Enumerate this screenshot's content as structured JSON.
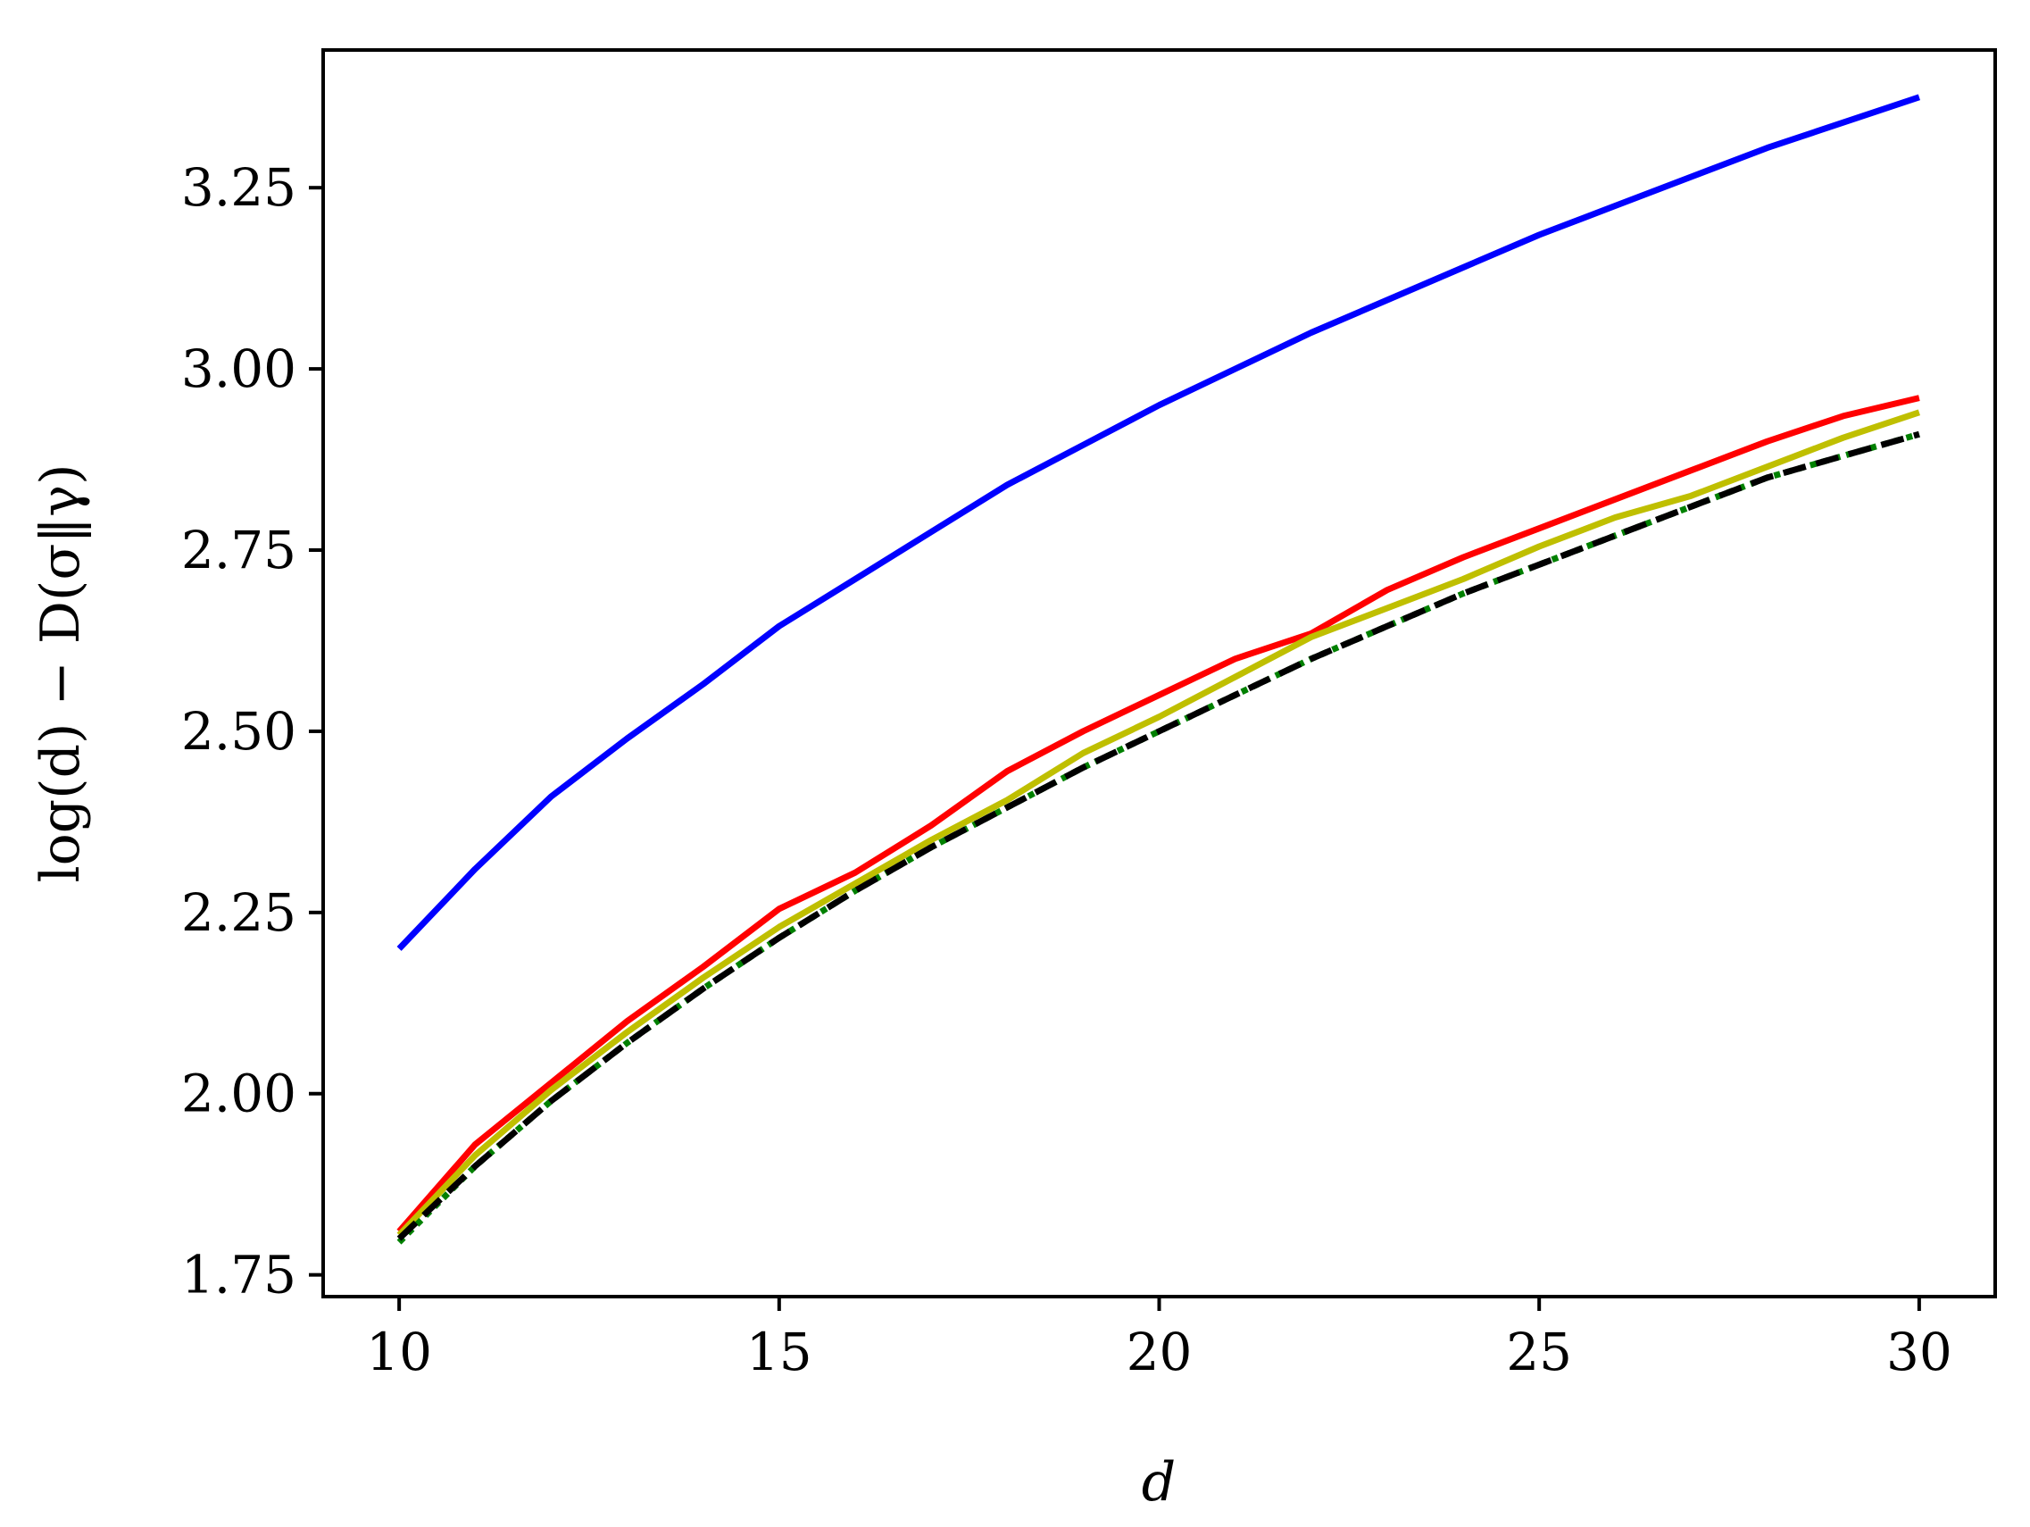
{
  "chart_data": {
    "type": "line",
    "title": "",
    "xlabel": "d",
    "ylabel": "log(d) − D(σ‖γ)",
    "xlim": [
      9,
      31
    ],
    "ylim": [
      1.72,
      3.44
    ],
    "xticks": [
      10,
      15,
      20,
      25,
      30
    ],
    "xtick_labels": [
      "10",
      "15",
      "20",
      "25",
      "30"
    ],
    "yticks": [
      1.75,
      2.0,
      2.25,
      2.5,
      2.75,
      3.0,
      3.25
    ],
    "ytick_labels": [
      "1.75",
      "2.00",
      "2.25",
      "2.50",
      "2.75",
      "3.00",
      "3.25"
    ],
    "grid": false,
    "legend": "none",
    "x": [
      10,
      11,
      12,
      13,
      14,
      15,
      16,
      17,
      18,
      19,
      20,
      21,
      22,
      23,
      24,
      25,
      26,
      27,
      28,
      29,
      30
    ],
    "series": [
      {
        "color": "#0000ff",
        "style": "solid",
        "values": [
          2.2,
          2.31,
          2.41,
          2.49,
          2.565,
          2.645,
          2.71,
          2.775,
          2.84,
          2.895,
          2.95,
          3.0,
          3.05,
          3.095,
          3.14,
          3.185,
          3.225,
          3.265,
          3.305,
          3.34,
          3.375
        ]
      },
      {
        "color": "#ff0000",
        "style": "solid",
        "values": [
          1.81,
          1.93,
          2.015,
          2.1,
          2.175,
          2.255,
          2.305,
          2.37,
          2.445,
          2.5,
          2.55,
          2.6,
          2.635,
          2.695,
          2.74,
          2.78,
          2.82,
          2.86,
          2.9,
          2.935,
          2.96
        ]
      },
      {
        "color": "#bfbf00",
        "style": "solid",
        "values": [
          1.805,
          1.915,
          2.005,
          2.085,
          2.16,
          2.23,
          2.29,
          2.35,
          2.405,
          2.47,
          2.52,
          2.575,
          2.63,
          2.67,
          2.71,
          2.755,
          2.795,
          2.825,
          2.865,
          2.905,
          2.94
        ]
      },
      {
        "color": "#008000",
        "style": "dotted",
        "values": [
          1.795,
          1.9,
          1.99,
          2.07,
          2.145,
          2.215,
          2.28,
          2.34,
          2.395,
          2.45,
          2.5,
          2.55,
          2.6,
          2.645,
          2.69,
          2.73,
          2.77,
          2.81,
          2.85,
          2.88,
          2.91
        ]
      },
      {
        "color": "#000000",
        "style": "dashed",
        "values": [
          1.8,
          1.9,
          1.99,
          2.07,
          2.145,
          2.215,
          2.28,
          2.34,
          2.395,
          2.45,
          2.5,
          2.55,
          2.6,
          2.645,
          2.69,
          2.73,
          2.77,
          2.81,
          2.85,
          2.88,
          2.91
        ]
      }
    ]
  }
}
